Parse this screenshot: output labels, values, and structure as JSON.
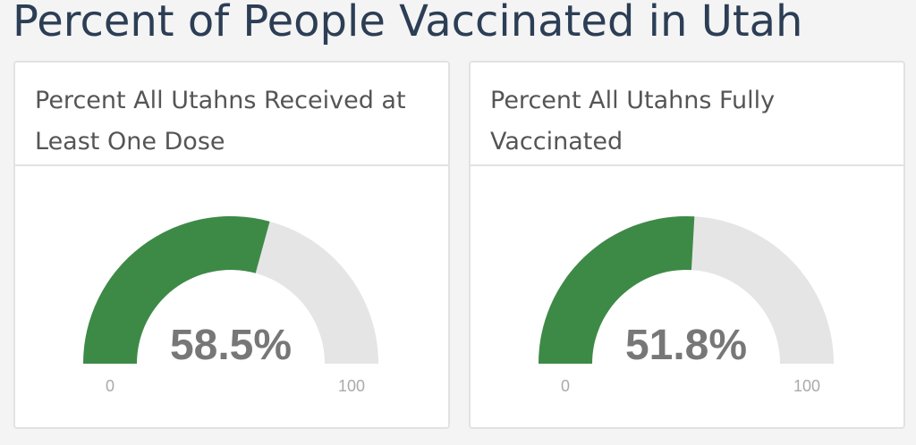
{
  "title": "Percent of People Vaccinated in Utah",
  "chart_data": [
    {
      "type": "gauge",
      "title": "Percent All Utahns Received at Least One Dose",
      "values": [
        58.5
      ],
      "value_labels": [
        "58.5%"
      ],
      "color": "#3d8a47",
      "ylim": [
        0,
        100
      ],
      "yticks": [
        0,
        100
      ]
    },
    {
      "type": "gauge",
      "title": "Percent All Utahns Fully Vaccinated",
      "values": [
        51.8
      ],
      "value_labels": [
        "51.8%"
      ],
      "color": "#3d8a47",
      "ylim": [
        0,
        100
      ],
      "yticks": [
        0,
        100
      ]
    }
  ]
}
